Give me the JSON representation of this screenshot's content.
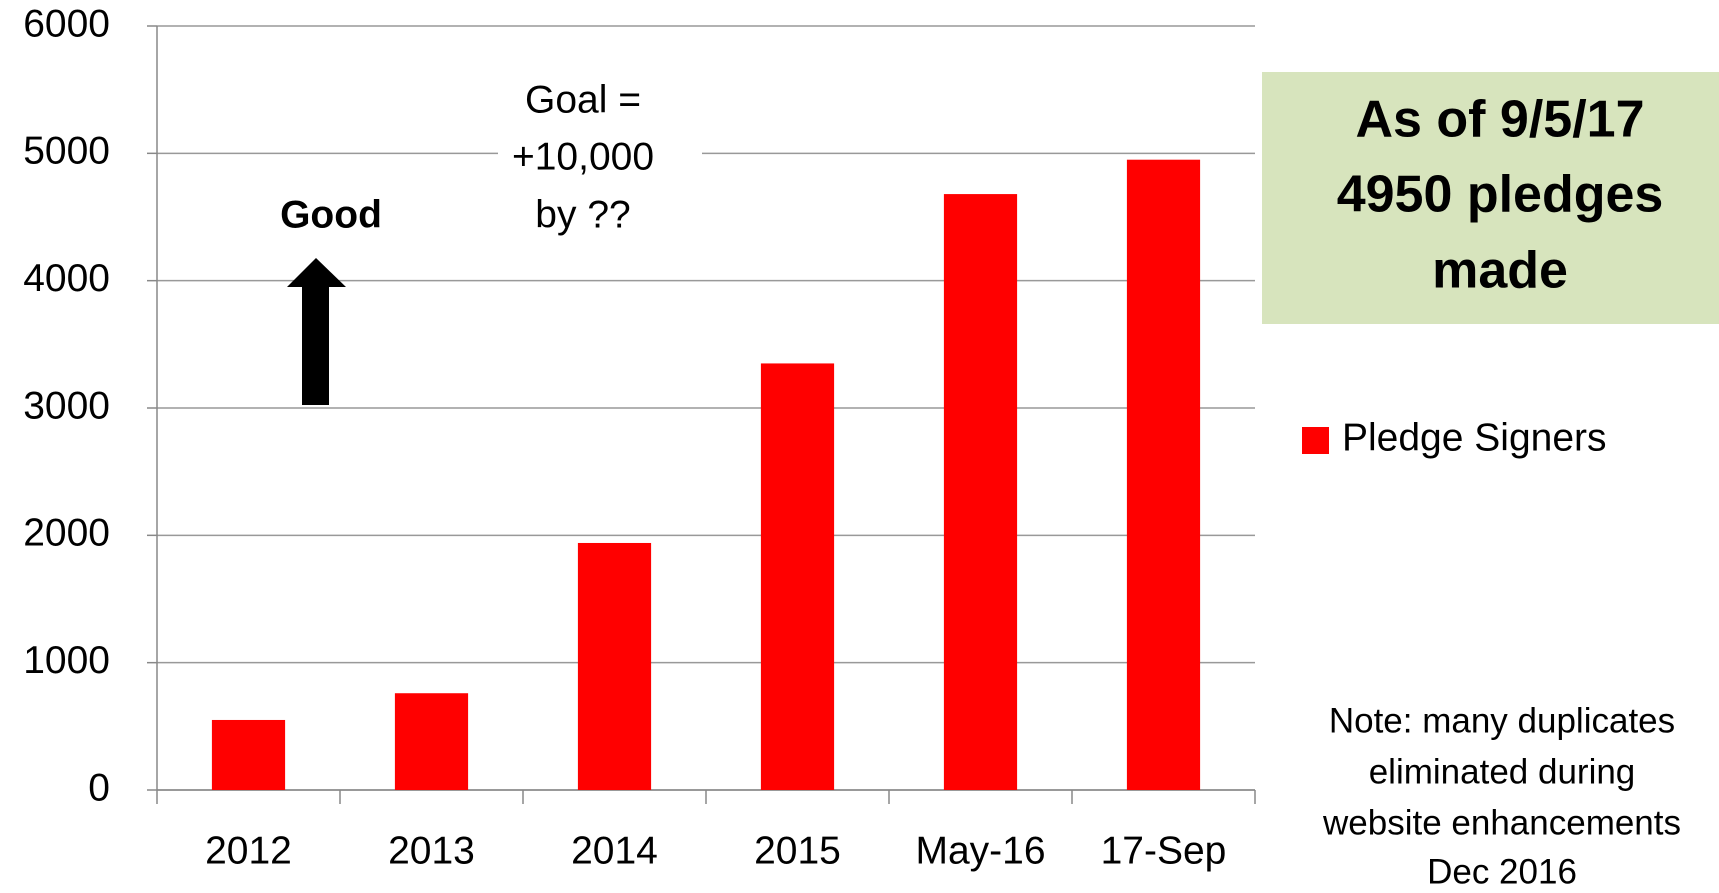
{
  "chart_data": {
    "type": "bar",
    "categories": [
      "2012",
      "2013",
      "2014",
      "2015",
      "May-16",
      "17-Sep"
    ],
    "series": [
      {
        "name": "Pledge Signers",
        "color": "#ff0000",
        "values": [
          550,
          760,
          1940,
          3350,
          4680,
          4950
        ]
      }
    ],
    "ylim": [
      0,
      6000
    ],
    "yticks": [
      0,
      1000,
      2000,
      3000,
      4000,
      5000,
      6000
    ],
    "grid": true,
    "legend": "right",
    "annotations": {
      "good": "Good",
      "goal": [
        "Goal =",
        "+10,000",
        "by ??"
      ]
    },
    "textbox": [
      "As of 9/5/17",
      "4950 pledges",
      "made"
    ],
    "note": [
      "Note: many duplicates",
      "eliminated during",
      "website enhancements",
      "Dec 2016"
    ]
  }
}
